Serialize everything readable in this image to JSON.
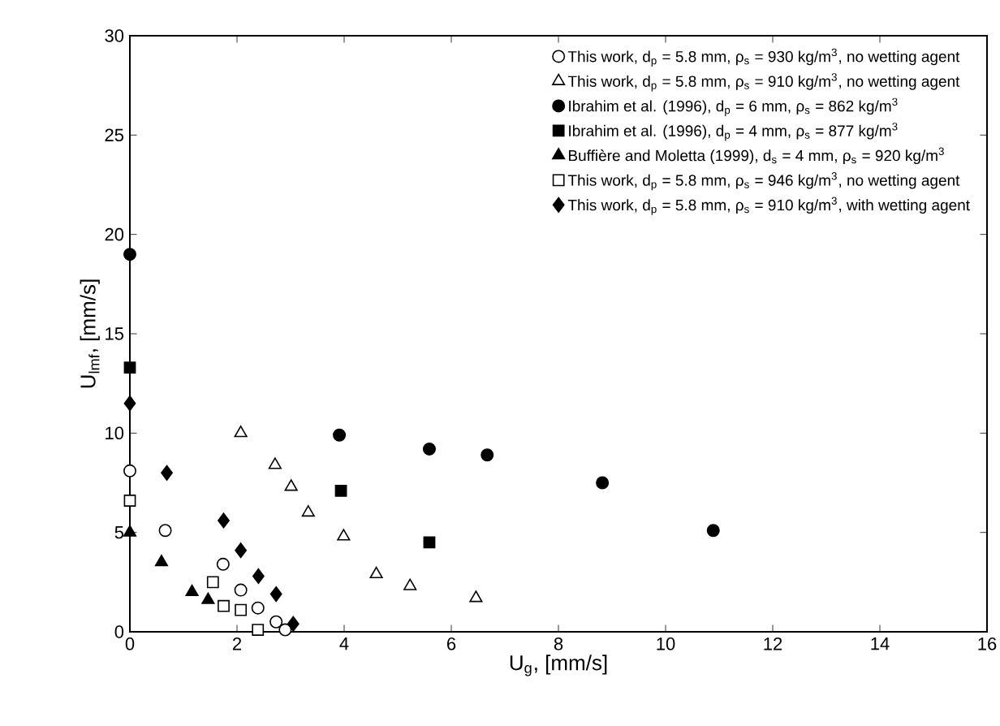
{
  "chart_data": {
    "type": "scatter",
    "xlabel": "U$_{g}$, [mm/s]",
    "ylabel": "U$_{lmf}$, [mm/s]",
    "xlim": [
      0,
      16
    ],
    "ylim": [
      0,
      30
    ],
    "xticks": [
      0,
      2,
      4,
      6,
      8,
      10,
      12,
      14,
      16
    ],
    "yticks": [
      0,
      5,
      10,
      15,
      20,
      25,
      30
    ],
    "grid": false,
    "legend": "top right",
    "series": [
      {
        "name": "This work, d$_{p}$ = 5.8 mm, ρ$_{s}$ = 930 kg/m$^{3}$, no wetting agent",
        "marker": "circle",
        "color": "#ffffff",
        "x": [
          0,
          0.66,
          1.74,
          2.07,
          2.39,
          2.73,
          2.9
        ],
        "values": [
          8.1,
          5.1,
          3.4,
          2.1,
          1.2,
          0.5,
          0.1
        ]
      },
      {
        "name": "This work, d$_{p}$ = 5.8 mm, ρ$_{s}$ = 910 kg/m$^{3}$, no wetting agent",
        "marker": "triangle",
        "color": "#ffffff",
        "x": [
          2.07,
          2.71,
          3.01,
          3.33,
          3.99,
          4.6,
          5.23,
          6.46
        ],
        "values": [
          10.0,
          8.4,
          7.3,
          6.0,
          4.8,
          2.9,
          2.3,
          1.7
        ]
      },
      {
        "name": "Ibrahim et al. (1996), d$_{p}$ = 6 mm, ρ$_{s}$ = 862 kg/m$^{3}$",
        "marker": "circle",
        "color": "#000000",
        "x": [
          0,
          3.91,
          5.59,
          6.67,
          8.82,
          10.89
        ],
        "values": [
          19.0,
          9.9,
          9.2,
          8.9,
          7.5,
          5.1
        ]
      },
      {
        "name": "Ibrahim et al. (1996), d$_{p}$ = 4 mm, ρ$_{s}$ = 877 kg/m$^{3}$",
        "marker": "square",
        "color": "#000000",
        "x": [
          0,
          3.94,
          5.59
        ],
        "values": [
          13.3,
          7.1,
          4.5
        ]
      },
      {
        "name": "Buffière and Moletta (1999), d$_{s}$ = 4 mm, ρ$_{s}$ = 920 kg/m$^{3}$",
        "marker": "triangle",
        "color": "#000000",
        "x": [
          0,
          0.59,
          1.16,
          1.46
        ],
        "values": [
          5.0,
          3.5,
          2.0,
          1.6
        ]
      },
      {
        "name": "This work, d$_{p}$ = 5.8 mm, ρ$_{s}$ = 946 kg/m$^{3}$, no wetting agent",
        "marker": "square",
        "color": "#ffffff",
        "x": [
          0,
          1.55,
          1.75,
          2.07,
          2.39
        ],
        "values": [
          6.6,
          2.5,
          1.3,
          1.1,
          0.1
        ]
      },
      {
        "name": "This work, d$_{p}$ = 5.8 mm, ρ$_{s}$ = 910 kg/m$^{3}$, with wetting agent",
        "marker": "diamond",
        "color": "#000000",
        "x": [
          0,
          0.69,
          1.75,
          2.07,
          2.4,
          2.73,
          3.05
        ],
        "values": [
          11.5,
          8.0,
          5.6,
          4.1,
          2.8,
          1.9,
          0.4
        ]
      }
    ]
  }
}
